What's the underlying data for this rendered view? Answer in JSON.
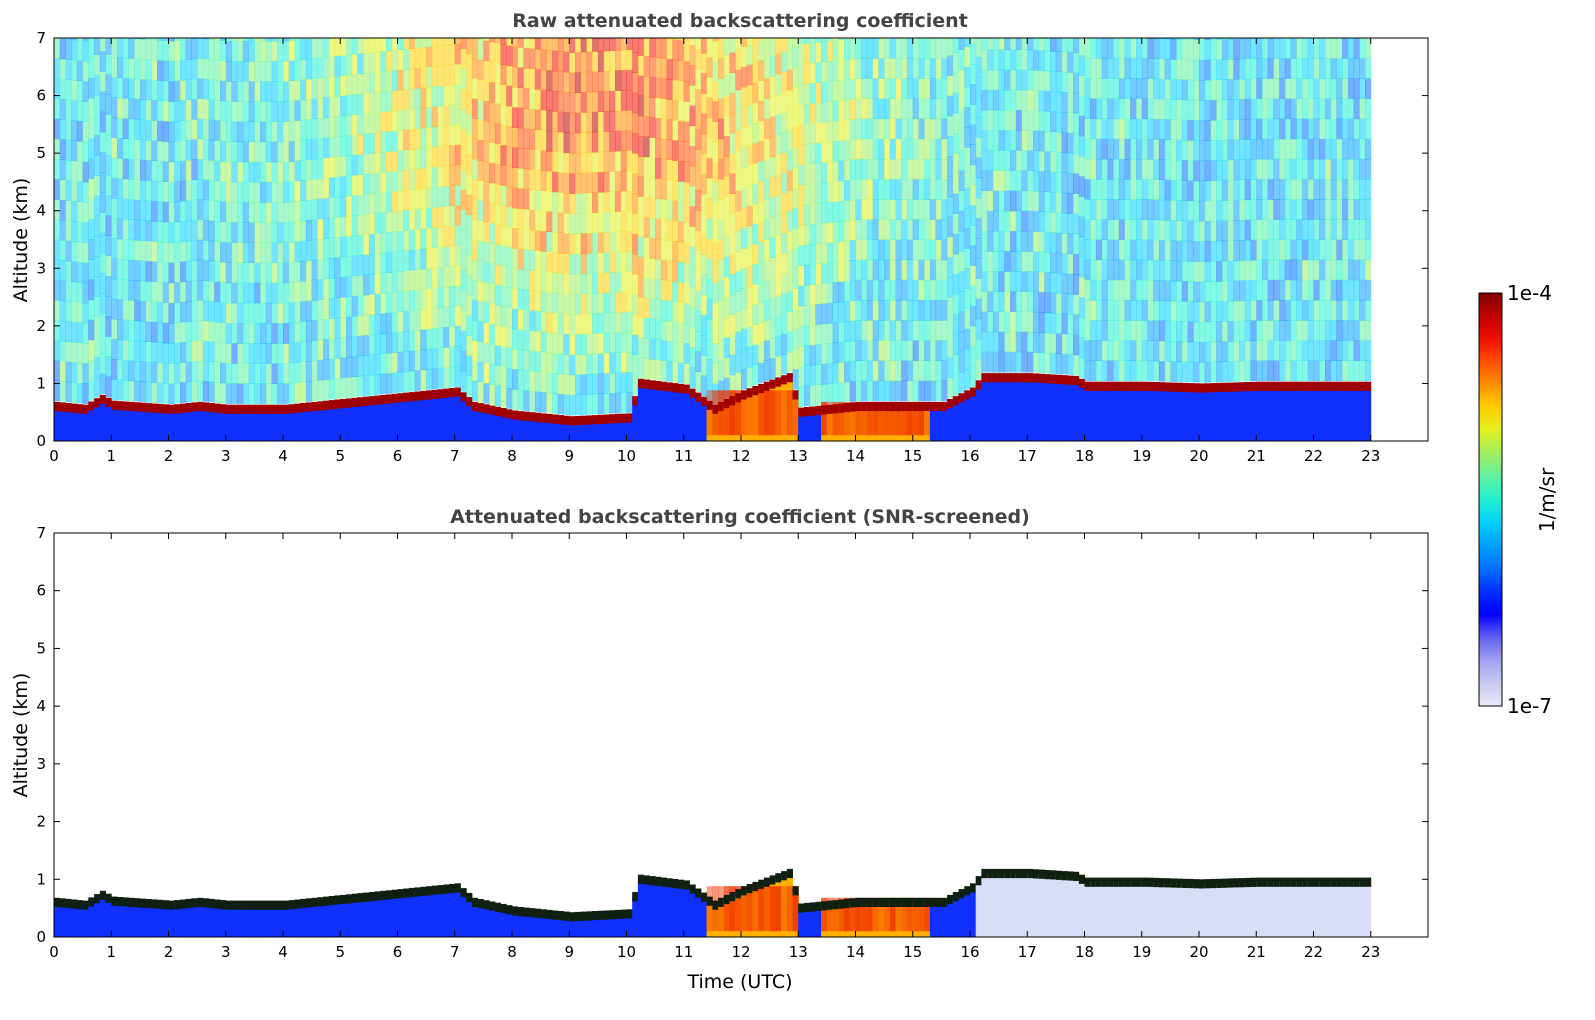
{
  "chart_data": [
    {
      "type": "heatmap",
      "title": "Raw attenuated backscattering coefficient",
      "xlabel": "",
      "ylabel": "Altitude (km)",
      "xlim": [
        0,
        24
      ],
      "ylim": [
        0,
        7
      ],
      "xticks": [
        "0",
        "1",
        "2",
        "3",
        "4",
        "5",
        "6",
        "7",
        "8",
        "9",
        "10",
        "11",
        "12",
        "13",
        "14",
        "15",
        "16",
        "17",
        "18",
        "19",
        "20",
        "21",
        "22",
        "23"
      ],
      "yticks": [
        "0",
        "1",
        "2",
        "3",
        "4",
        "5",
        "6",
        "7"
      ],
      "data_time_range": [
        0,
        23
      ],
      "screening": "raw",
      "cloud_base_km": [
        [
          0,
          0.6
        ],
        [
          0.5,
          0.55
        ],
        [
          0.8,
          0.72
        ],
        [
          1,
          0.62
        ],
        [
          2,
          0.55
        ],
        [
          2.5,
          0.6
        ],
        [
          3,
          0.55
        ],
        [
          4,
          0.55
        ],
        [
          5,
          0.65
        ],
        [
          6,
          0.75
        ],
        [
          7,
          0.85
        ],
        [
          7.3,
          0.6
        ],
        [
          8,
          0.45
        ],
        [
          9,
          0.35
        ],
        [
          10,
          0.4
        ],
        [
          10.2,
          1.0
        ],
        [
          11,
          0.9
        ],
        [
          11.5,
          0.55
        ],
        [
          12,
          0.8
        ],
        [
          12.8,
          1.1
        ],
        [
          13,
          0.5
        ],
        [
          14,
          0.6
        ],
        [
          15,
          0.6
        ],
        [
          15.5,
          0.6
        ],
        [
          16,
          0.85
        ],
        [
          16.2,
          1.1
        ],
        [
          17,
          1.1
        ],
        [
          17.8,
          1.05
        ],
        [
          18,
          0.95
        ],
        [
          19,
          0.95
        ],
        [
          20,
          0.92
        ],
        [
          21,
          0.95
        ],
        [
          22,
          0.95
        ],
        [
          23,
          0.95
        ]
      ],
      "high_signal_regions": [
        {
          "t_start": 11.3,
          "t_end": 12.9,
          "alt_top_km": 1.1
        },
        {
          "t_start": 13.3,
          "t_end": 15.2,
          "alt_top_km": 0.85
        }
      ]
    },
    {
      "type": "heatmap",
      "title": "Attenuated backscattering coefficient (SNR-screened)",
      "xlabel": "Time (UTC)",
      "ylabel": "Altitude (km)",
      "xlim": [
        0,
        24
      ],
      "ylim": [
        0,
        7
      ],
      "xticks": [
        "0",
        "1",
        "2",
        "3",
        "4",
        "5",
        "6",
        "7",
        "8",
        "9",
        "10",
        "11",
        "12",
        "13",
        "14",
        "15",
        "16",
        "17",
        "18",
        "19",
        "20",
        "21",
        "22",
        "23"
      ],
      "yticks": [
        "0",
        "1",
        "2",
        "3",
        "4",
        "5",
        "6",
        "7"
      ],
      "data_time_range": [
        0,
        23
      ],
      "screening": "SNR",
      "cloud_base_km": [
        [
          0,
          0.6
        ],
        [
          0.5,
          0.55
        ],
        [
          0.8,
          0.72
        ],
        [
          1,
          0.62
        ],
        [
          2,
          0.55
        ],
        [
          2.5,
          0.6
        ],
        [
          3,
          0.55
        ],
        [
          4,
          0.55
        ],
        [
          5,
          0.65
        ],
        [
          6,
          0.75
        ],
        [
          7,
          0.85
        ],
        [
          7.3,
          0.6
        ],
        [
          8,
          0.45
        ],
        [
          9,
          0.35
        ],
        [
          10,
          0.4
        ],
        [
          10.2,
          1.0
        ],
        [
          11,
          0.9
        ],
        [
          11.5,
          0.55
        ],
        [
          12,
          0.8
        ],
        [
          12.8,
          1.1
        ],
        [
          13,
          0.5
        ],
        [
          14,
          0.6
        ],
        [
          15,
          0.6
        ],
        [
          15.5,
          0.6
        ],
        [
          16,
          0.85
        ],
        [
          16.2,
          1.1
        ],
        [
          17,
          1.1
        ],
        [
          17.8,
          1.05
        ],
        [
          18,
          0.95
        ],
        [
          19,
          0.95
        ],
        [
          20,
          0.92
        ],
        [
          21,
          0.95
        ],
        [
          22,
          0.95
        ],
        [
          23,
          0.95
        ]
      ],
      "high_signal_regions": [
        {
          "t_start": 11.3,
          "t_end": 12.9,
          "alt_top_km": 1.1
        },
        {
          "t_start": 13.3,
          "t_end": 15.2,
          "alt_top_km": 0.85
        }
      ]
    }
  ],
  "colorbar": {
    "label": "1/m/sr",
    "max_label": "1e-4",
    "min_label": "1e-7",
    "scale": "log",
    "colors": [
      "#e8e8f8",
      "#c8c8f0",
      "#a0a0f0",
      "#6060f0",
      "#0000ff",
      "#0030ff",
      "#0070ff",
      "#00a0ff",
      "#00d0ff",
      "#20f0d0",
      "#60f0a0",
      "#a0f060",
      "#e0f020",
      "#ffd000",
      "#ff9000",
      "#ff5000",
      "#f01000",
      "#c00000",
      "#800000"
    ]
  }
}
